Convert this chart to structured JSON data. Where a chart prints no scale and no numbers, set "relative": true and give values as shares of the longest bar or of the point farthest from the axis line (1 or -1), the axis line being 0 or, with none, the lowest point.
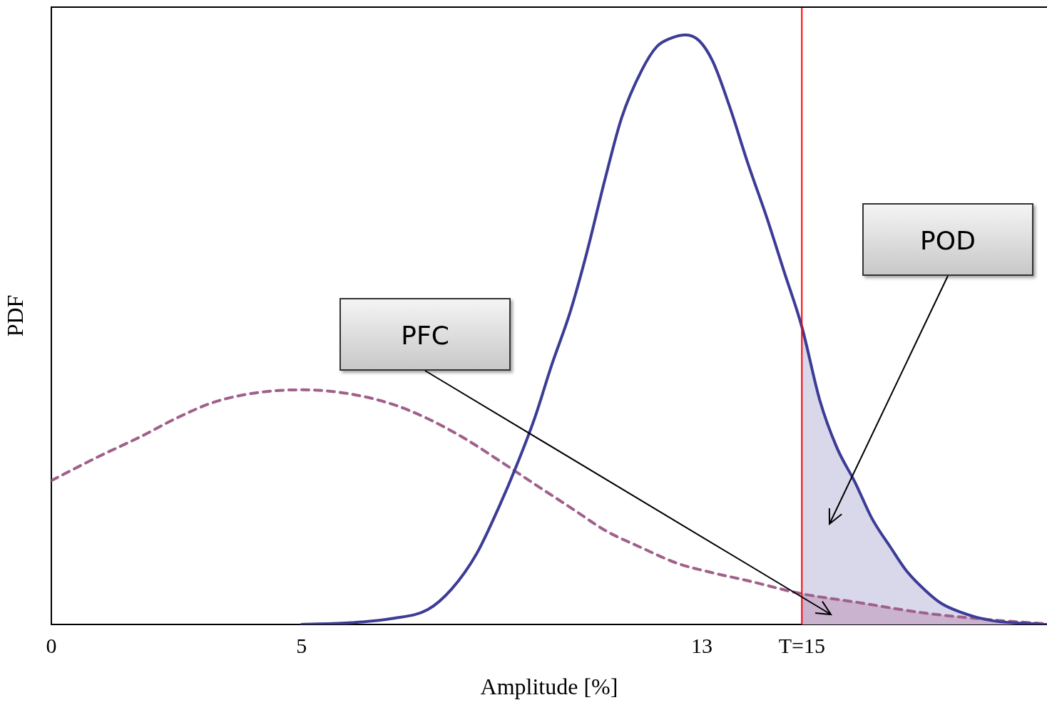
{
  "chart_data": {
    "type": "line",
    "xlabel": "Amplitude [%]",
    "ylabel": "PDF",
    "relative": true,
    "xlim": [
      0,
      19.9
    ],
    "xticks": [
      0,
      5,
      13,
      {
        "value": 15,
        "label": "T=15"
      }
    ],
    "grid": false,
    "legend": false,
    "marker": "none",
    "series": [
      {
        "type": "area",
        "color": "#d8d8ea",
        "x": [
          15,
          15.36,
          15.7,
          16.07,
          16.4,
          16.78,
          17.1,
          17.49,
          17.8,
          18.2,
          18.5,
          18.92,
          19.4,
          19.9
        ],
        "values": [
          0.505,
          0.38,
          0.3,
          0.24,
          0.18,
          0.13,
          0.09,
          0.056,
          0.035,
          0.02,
          0.012,
          0.005,
          0.002,
          0
        ]
      },
      {
        "type": "area",
        "color": "#c9b3cf",
        "x": [
          15,
          16.07,
          17.49,
          18.92,
          19.9
        ],
        "values": [
          0.052,
          0.038,
          0.019,
          0.007,
          0.001
        ]
      },
      {
        "color": "#3c3c96",
        "line_style": "solid",
        "x": [
          5,
          6,
          6.8,
          7.52,
          8,
          8.5,
          8.95,
          9.3,
          9.66,
          10,
          10.37,
          10.7,
          11.08,
          11.4,
          11.8,
          12.1,
          12.4,
          12.68,
          12.95,
          13.22,
          13.55,
          13.93,
          14.3,
          14.64,
          15,
          15.36,
          15.7,
          16.07,
          16.4,
          16.78,
          17.1,
          17.49,
          17.8,
          18.2,
          18.5,
          18.92,
          19.4,
          19.9
        ],
        "values": [
          0,
          0.003,
          0.01,
          0.025,
          0.06,
          0.12,
          0.2,
          0.27,
          0.35,
          0.44,
          0.53,
          0.63,
          0.76,
          0.86,
          0.94,
          0.98,
          0.995,
          1,
          0.99,
          0.955,
          0.88,
          0.78,
          0.69,
          0.6,
          0.505,
          0.38,
          0.3,
          0.24,
          0.18,
          0.13,
          0.09,
          0.056,
          0.035,
          0.02,
          0.012,
          0.005,
          0.002,
          0
        ]
      },
      {
        "color": "#a0608a",
        "line_style": "dashed",
        "x": [
          0,
          0.9,
          1.82,
          2.5,
          3.25,
          4.1,
          5,
          5.9,
          6.8,
          7.5,
          8.23,
          8.95,
          9.66,
          10.4,
          11.08,
          11.8,
          12.5,
          13.2,
          13.93,
          15,
          16.07,
          17.49,
          18.92,
          19.9
        ],
        "values": [
          0.244,
          0.283,
          0.32,
          0.35,
          0.377,
          0.393,
          0.398,
          0.392,
          0.374,
          0.35,
          0.317,
          0.278,
          0.238,
          0.197,
          0.159,
          0.13,
          0.104,
          0.088,
          0.074,
          0.052,
          0.038,
          0.019,
          0.007,
          0.001
        ]
      }
    ],
    "ref_lines": [
      {
        "axis": "x",
        "value": 15,
        "color": "#ff0000"
      }
    ],
    "annotations": [
      "PFC",
      "POD"
    ]
  }
}
